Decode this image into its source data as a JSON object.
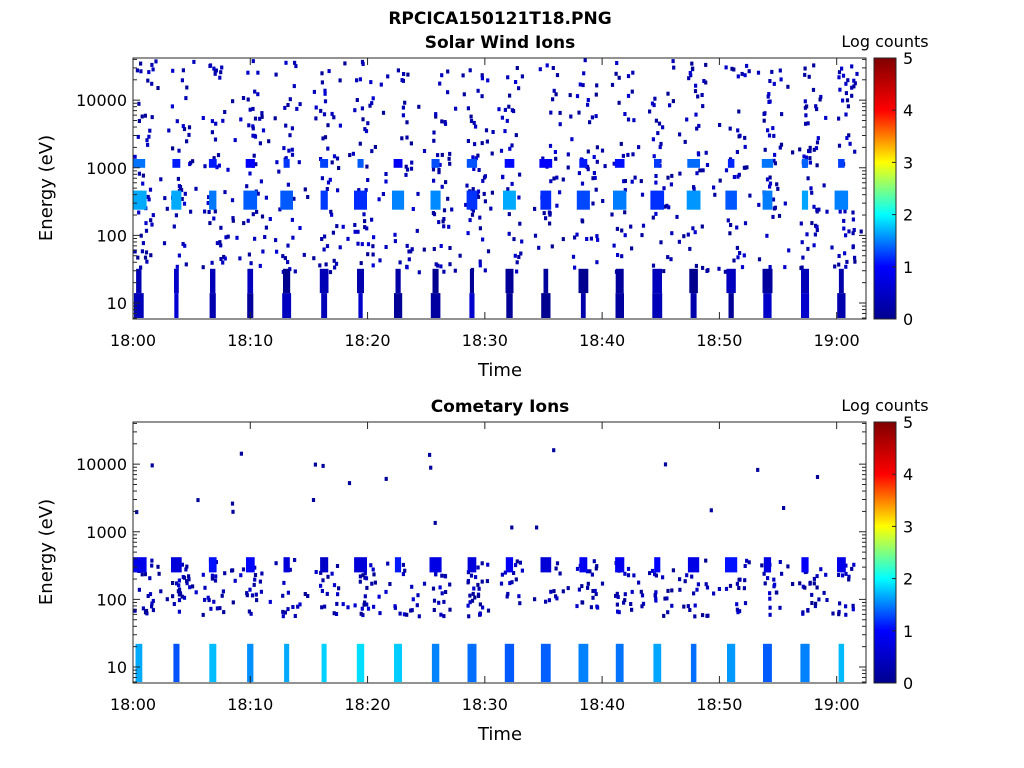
{
  "figure": {
    "filename": "RPCICA150121T18.PNG"
  },
  "colormap": {
    "name": "jet",
    "stops": [
      "#00008f",
      "#0000ff",
      "#00ffff",
      "#ffff00",
      "#ff0000",
      "#800000"
    ]
  },
  "chart_data": [
    {
      "type": "heatmap",
      "title": "Solar Wind Ions",
      "xlabel": "Time",
      "ylabel": "Energy (eV)",
      "x_ticks": [
        "18:00",
        "18:10",
        "18:20",
        "18:30",
        "18:40",
        "18:50",
        "19:00"
      ],
      "x_tick_minutes": [
        0,
        10,
        20,
        30,
        40,
        50,
        60
      ],
      "xlim_minutes": [
        0,
        62.5
      ],
      "y_ticks": [
        "10",
        "100",
        "1000",
        "10000"
      ],
      "y_tick_values": [
        10,
        100,
        1000,
        10000
      ],
      "ylim": [
        5.8,
        42000
      ],
      "y_scale": "log",
      "colorbar": {
        "label": "Log counts",
        "range": [
          0,
          5
        ],
        "ticks": [
          "0",
          "1",
          "2",
          "3",
          "4",
          "5"
        ]
      },
      "sweep_times_minutes": [
        0.5,
        3.7,
        6.8,
        10.0,
        13.1,
        16.3,
        19.4,
        22.6,
        25.8,
        28.9,
        32.1,
        35.2,
        38.4,
        41.5,
        44.7,
        47.8,
        51.0,
        54.1,
        57.3,
        60.4
      ],
      "bands": [
        {
          "name": "",
          "e_min": 6,
          "e_max": 14,
          "log_counts": 0.3
        },
        {
          "name": "",
          "e_min": 14,
          "e_max": 32,
          "log_counts": 0.2
        },
        {
          "name": "",
          "e_min": 240,
          "e_max": 460,
          "log_counts": 1.4
        },
        {
          "name": "",
          "e_min": 1000,
          "e_max": 1350,
          "log_counts": 1.2
        }
      ],
      "sparse_range": [
        30,
        42000
      ]
    },
    {
      "type": "heatmap",
      "title": "Cometary Ions",
      "xlabel": "Time",
      "ylabel": "Energy (eV)",
      "x_ticks": [
        "18:00",
        "18:10",
        "18:20",
        "18:30",
        "18:40",
        "18:50",
        "19:00"
      ],
      "x_tick_minutes": [
        0,
        10,
        20,
        30,
        40,
        50,
        60
      ],
      "xlim_minutes": [
        0,
        62.5
      ],
      "y_ticks": [
        "10",
        "100",
        "1000",
        "10000"
      ],
      "y_tick_values": [
        10,
        100,
        1000,
        10000
      ],
      "ylim": [
        5.8,
        42000
      ],
      "y_scale": "log",
      "colorbar": {
        "label": "Log counts",
        "range": [
          0,
          5
        ],
        "ticks": [
          "0",
          "1",
          "2",
          "3",
          "4",
          "5"
        ]
      },
      "sweep_times_minutes": [
        0.5,
        3.7,
        6.8,
        10.0,
        13.1,
        16.3,
        19.4,
        22.6,
        25.8,
        28.9,
        32.1,
        35.2,
        38.4,
        41.5,
        44.7,
        47.8,
        51.0,
        54.1,
        57.3,
        60.4
      ],
      "bands": [
        {
          "name": "",
          "e_min": 6,
          "e_max": 22,
          "log_counts": 1.6
        },
        {
          "name": "",
          "e_min": 250,
          "e_max": 420,
          "log_counts": 0.8
        }
      ],
      "sparse_range": [
        60,
        420
      ]
    }
  ]
}
